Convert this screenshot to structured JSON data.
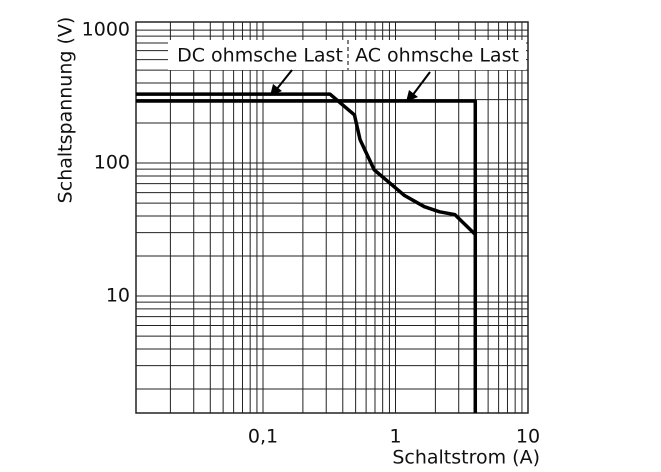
{
  "chart_data": {
    "type": "line",
    "xlabel": "Schaltstrom (A)",
    "ylabel": "Schaltspannung (V)",
    "xscale": "log",
    "yscale": "log",
    "grid": true,
    "xlim": [
      0.011,
      10
    ],
    "ylim": [
      1.32,
      1150
    ],
    "xticks": [
      {
        "value": 0.1,
        "label": "0,1"
      },
      1,
      10
    ],
    "yticks": [
      10,
      100,
      1000
    ],
    "series": [
      {
        "name": "DC ohmsche Last",
        "color": "#000000",
        "x": [
          0.011,
          0.32,
          0.49,
          0.54,
          0.69,
          1.17,
          1.65,
          2.15,
          2.8,
          4.0
        ],
        "values": [
          330,
          330,
          230,
          150,
          89,
          57,
          47,
          43,
          41,
          29
        ]
      },
      {
        "name": "AC ohmsche Last",
        "color": "#000000",
        "x": [
          0.011,
          4.0,
          4.0
        ],
        "values": [
          293,
          293,
          1.32
        ]
      }
    ]
  }
}
